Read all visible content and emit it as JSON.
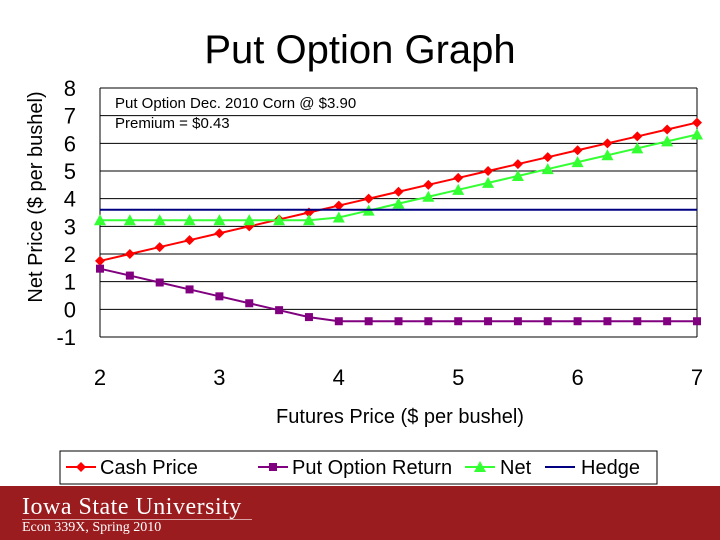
{
  "slide": {
    "title": "Put Option Graph",
    "university": "Iowa State University",
    "course": "Econ 339X, Spring 2010"
  },
  "chart_data": {
    "type": "line",
    "title": "Put Option Graph",
    "annotation": [
      "Put Option Dec. 2010 Corn @ $3.90",
      "Premium = $0.43"
    ],
    "xlabel": "Futures Price ($ per bushel)",
    "ylabel": "Net Price ($ per bushel)",
    "xlim": [
      2,
      7
    ],
    "ylim": [
      -1,
      8
    ],
    "x_ticks": [
      2,
      3,
      4,
      5,
      6,
      7
    ],
    "y_ticks": [
      8,
      7,
      6,
      5,
      4,
      3,
      2,
      1,
      0,
      -1
    ],
    "grid": "horizontal",
    "legend_position": "bottom",
    "x": [
      2,
      2.25,
      2.5,
      2.75,
      3,
      3.25,
      3.5,
      3.75,
      4,
      4.25,
      4.5,
      4.75,
      5,
      5.25,
      5.5,
      5.75,
      6,
      6.25,
      6.5,
      6.75,
      7
    ],
    "series": [
      {
        "name": "Cash Price",
        "color": "#ff0000",
        "marker": "diamond",
        "values": [
          1.75,
          2.0,
          2.25,
          2.5,
          2.75,
          3.0,
          3.25,
          3.5,
          3.75,
          4.0,
          4.25,
          4.5,
          4.75,
          5.0,
          5.25,
          5.5,
          5.75,
          6.0,
          6.25,
          6.5,
          6.75
        ]
      },
      {
        "name": "Put Option Return",
        "color": "#800080",
        "marker": "square",
        "values": [
          1.47,
          1.22,
          0.97,
          0.72,
          0.47,
          0.22,
          -0.03,
          -0.28,
          -0.43,
          -0.43,
          -0.43,
          -0.43,
          -0.43,
          -0.43,
          -0.43,
          -0.43,
          -0.43,
          -0.43,
          -0.43,
          -0.43,
          -0.43
        ]
      },
      {
        "name": "Net",
        "color": "#33ff33",
        "marker": "triangle",
        "values": [
          3.22,
          3.22,
          3.22,
          3.22,
          3.22,
          3.22,
          3.22,
          3.22,
          3.32,
          3.57,
          3.82,
          4.07,
          4.32,
          4.57,
          4.82,
          5.07,
          5.32,
          5.57,
          5.82,
          6.07,
          6.32
        ]
      },
      {
        "name": "Hedge",
        "color": "#000080",
        "marker": "none",
        "values": [
          3.6,
          3.6,
          3.6,
          3.6,
          3.6,
          3.6,
          3.6,
          3.6,
          3.6,
          3.6,
          3.6,
          3.6,
          3.6,
          3.6,
          3.6,
          3.6,
          3.6,
          3.6,
          3.6,
          3.6,
          3.6
        ]
      }
    ]
  }
}
